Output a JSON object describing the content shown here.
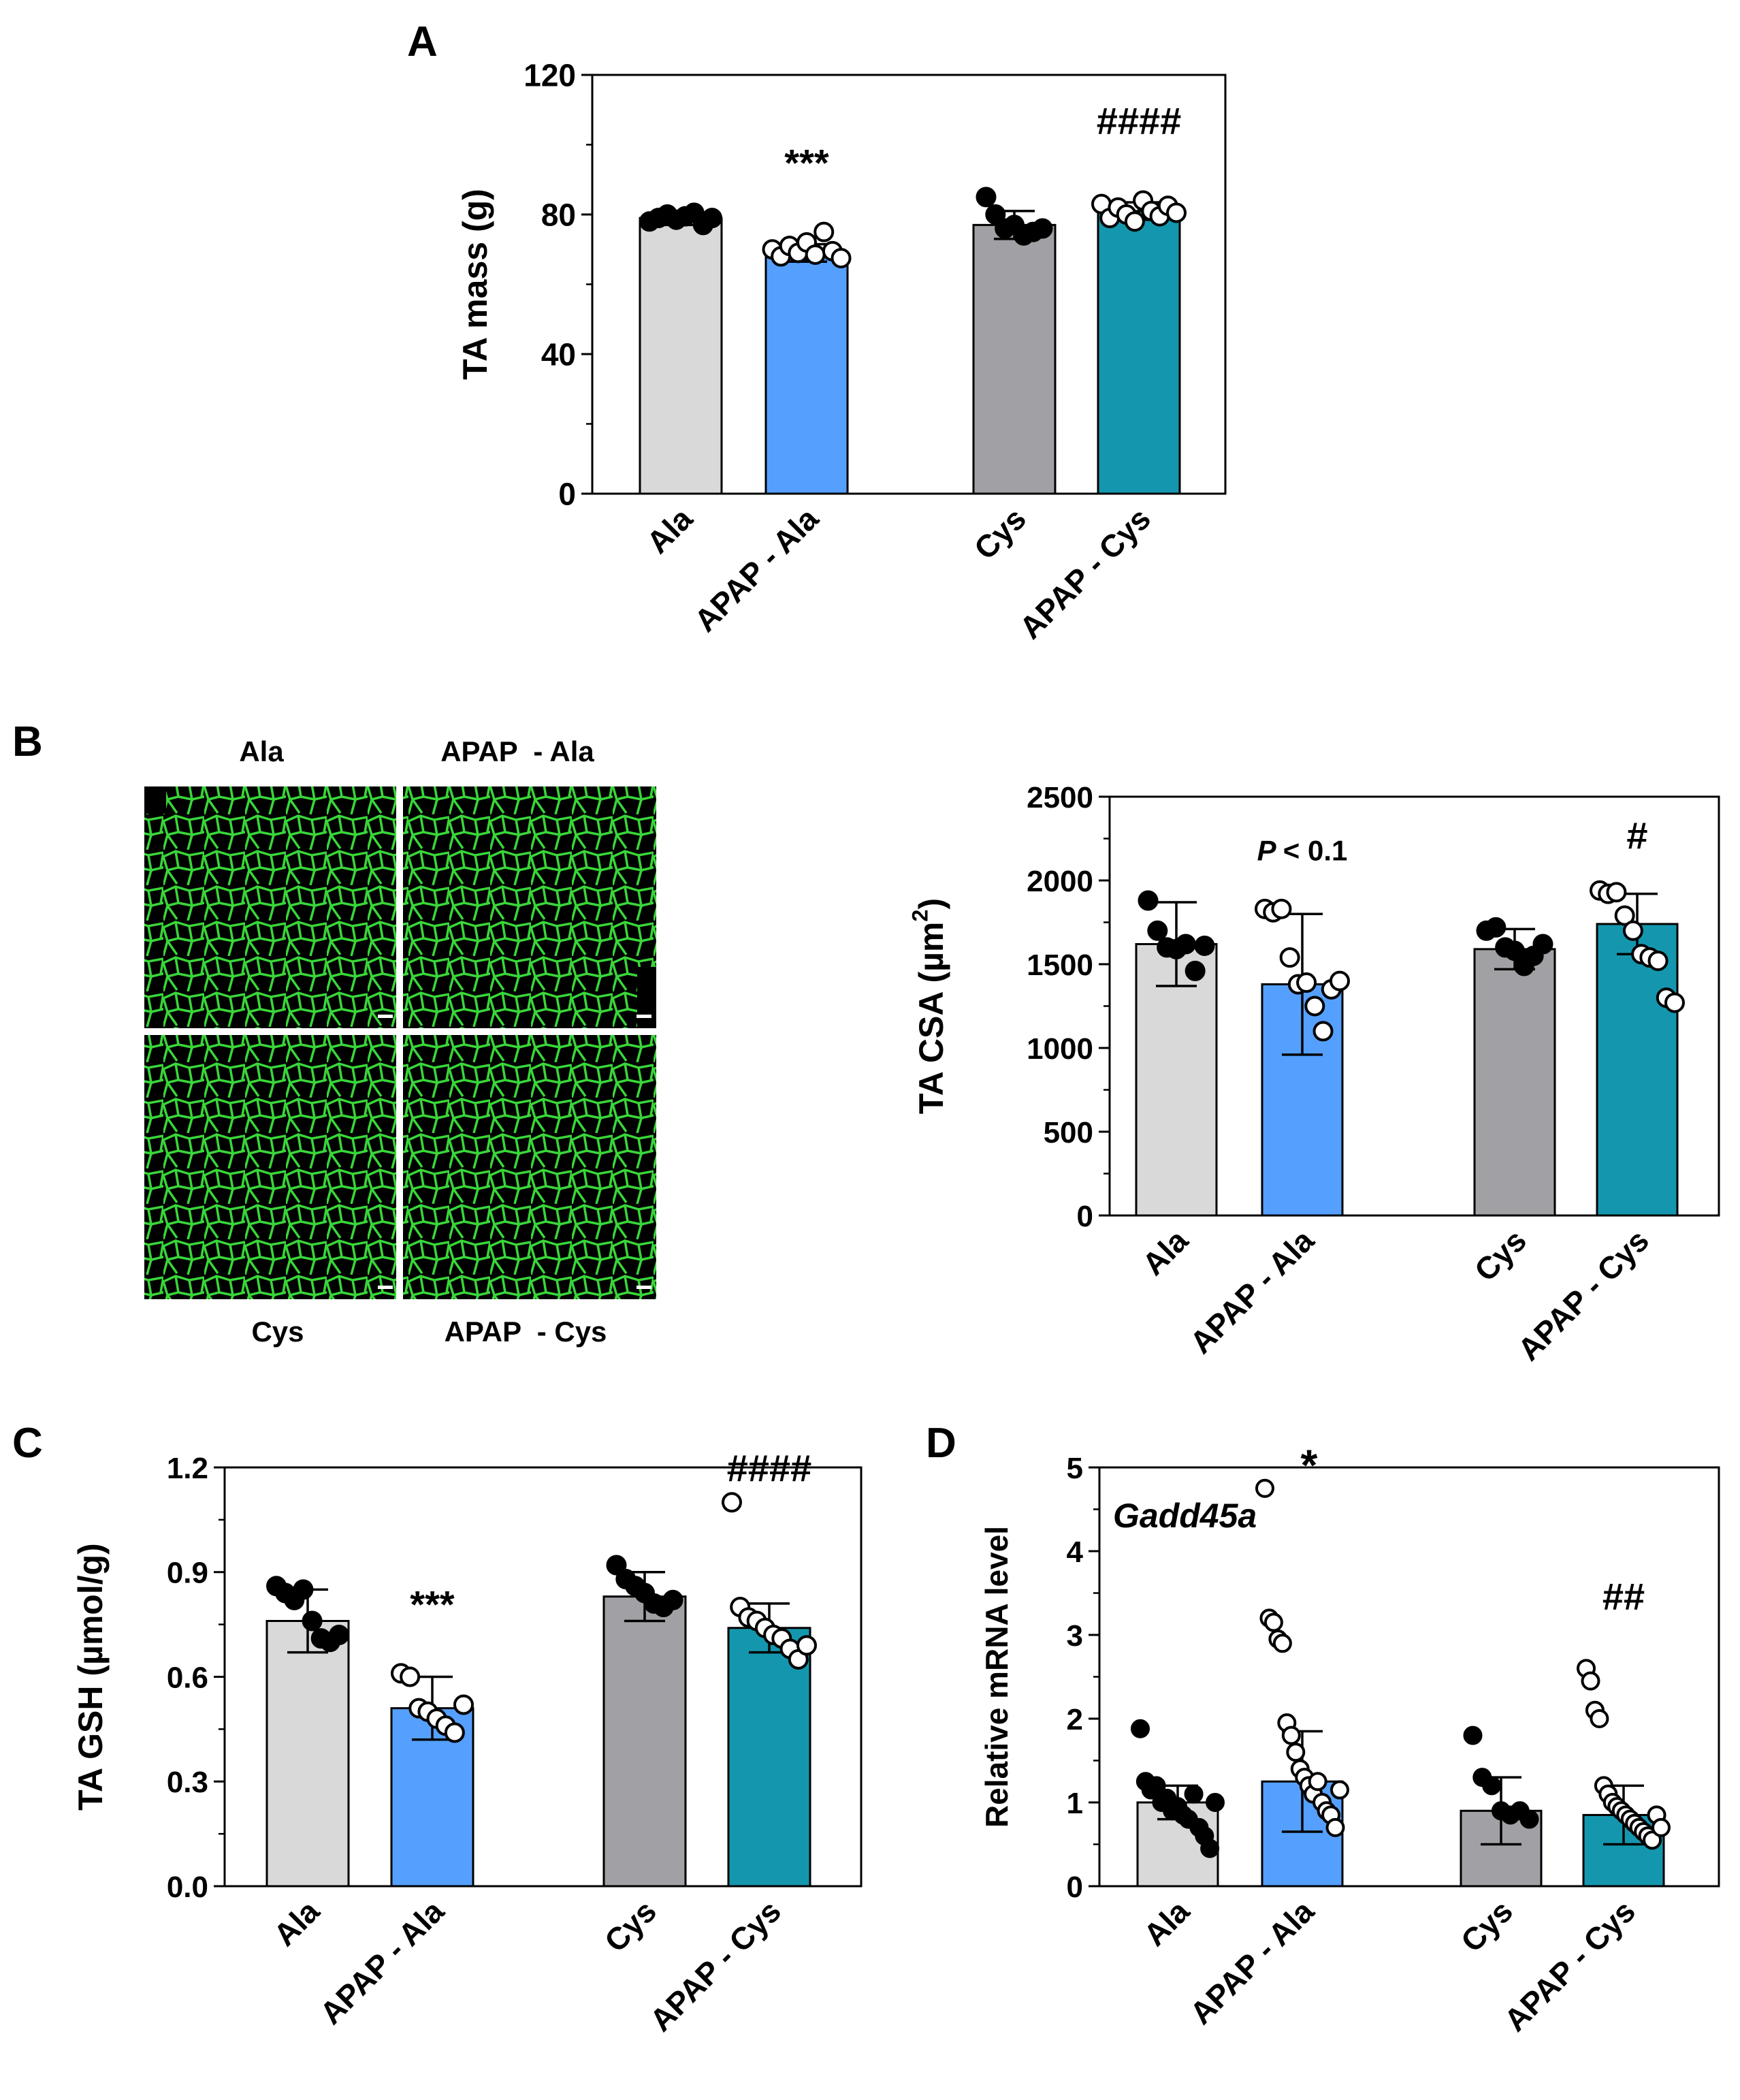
{
  "colors": {
    "ala": "#d9d9d9",
    "apap_ala": "#55a0ff",
    "cys": "#a1a0a5",
    "apap_cys": "#1497ae",
    "stain": "#39d639"
  },
  "panels": {
    "a": "A",
    "b": "B",
    "c": "C",
    "d": "D"
  },
  "micrographs": {
    "labels": [
      "Ala",
      "APAP  - Ala",
      "Cys",
      "APAP  - Cys"
    ]
  },
  "chart_data": [
    {
      "id": "A",
      "type": "bar",
      "ylabel": "TA mass (g)",
      "ylim": [
        0,
        120
      ],
      "yticks": [
        0,
        40,
        80,
        120
      ],
      "categories": [
        "Ala",
        "APAP - Ala",
        "Cys",
        "APAP - Cys"
      ],
      "values": [
        79,
        69,
        77,
        81
      ],
      "sd": [
        2,
        2.5,
        4,
        2.5
      ],
      "points": [
        [
          78,
          79,
          80,
          78.5,
          79.5,
          80.5,
          77,
          79
        ],
        [
          70,
          68,
          71,
          69,
          72,
          68.5,
          75,
          69.5,
          67.5
        ],
        [
          85,
          80,
          76,
          77,
          74,
          75,
          76
        ],
        [
          83,
          79,
          82,
          80,
          78,
          84,
          81,
          79.5,
          82.5,
          80.5
        ]
      ],
      "annotations": [
        "",
        "***",
        "",
        "####"
      ],
      "annotation_values": [
        0,
        91,
        0,
        103
      ],
      "annotation_style": [
        "normal",
        "normal",
        "normal",
        "normal"
      ]
    },
    {
      "id": "B",
      "type": "bar",
      "ylabel": "TA CSA (µm",
      "ylabel_sup": "2",
      "ylabel_end": ")",
      "ylim": [
        0,
        2500
      ],
      "yticks": [
        0,
        500,
        1000,
        1500,
        2000,
        2500
      ],
      "categories": [
        "Ala",
        "APAP - Ala",
        "Cys",
        "APAP - Cys"
      ],
      "values": [
        1620,
        1380,
        1590,
        1740
      ],
      "sd": [
        250,
        420,
        120,
        180
      ],
      "points": [
        [
          1880,
          1700,
          1600,
          1590,
          1620,
          1460,
          1610
        ],
        [
          1830,
          1810,
          1830,
          1540,
          1380,
          1390,
          1250,
          1100,
          1350,
          1400
        ],
        [
          1700,
          1720,
          1600,
          1580,
          1490,
          1550,
          1620
        ],
        [
          1940,
          1920,
          1930,
          1790,
          1700,
          1560,
          1540,
          1520,
          1300,
          1270
        ]
      ],
      "annotations": [
        "",
        "< 0.1",
        "",
        "#"
      ],
      "annotation_prefix": [
        "",
        "P",
        "",
        ""
      ],
      "annotation_values": [
        0,
        2120,
        0,
        2190
      ],
      "annotation_style": [
        "normal",
        "small",
        "normal",
        "normal"
      ]
    },
    {
      "id": "C",
      "type": "bar",
      "ylabel": "TA GSH (µmol/g)",
      "ylim": [
        0,
        1.2
      ],
      "yticks": [
        0.0,
        0.3,
        0.6,
        0.9,
        1.2
      ],
      "tick_labels": [
        "0.0",
        "0.3",
        "0.6",
        "0.9",
        "1.2"
      ],
      "categories": [
        "Ala",
        "APAP - Ala",
        "Cys",
        "APAP - Cys"
      ],
      "values": [
        0.76,
        0.51,
        0.83,
        0.74
      ],
      "sd": [
        0.09,
        0.09,
        0.07,
        0.07
      ],
      "points": [
        [
          0.86,
          0.84,
          0.82,
          0.85,
          0.76,
          0.71,
          0.7,
          0.72
        ],
        [
          0.61,
          0.6,
          0.51,
          0.5,
          0.48,
          0.46,
          0.44,
          0.52
        ],
        [
          0.92,
          0.88,
          0.86,
          0.84,
          0.81,
          0.8,
          0.82
        ],
        [
          1.1,
          0.8,
          0.77,
          0.76,
          0.74,
          0.72,
          0.71,
          0.68,
          0.65,
          0.69
        ]
      ],
      "annotations": [
        "",
        "***",
        "",
        "####"
      ],
      "annotation_values": [
        0,
        0.77,
        0,
        1.16
      ],
      "annotation_style": [
        "normal",
        "normal",
        "normal",
        "normal"
      ]
    },
    {
      "id": "D",
      "type": "bar",
      "ylabel": "Relative mRNA level",
      "gene": "Gadd45a",
      "ylim": [
        0,
        5
      ],
      "yticks": [
        0,
        1,
        2,
        3,
        4,
        5
      ],
      "categories": [
        "Ala",
        "APAP - Ala",
        "Cys",
        "APAP - Cys"
      ],
      "values": [
        1.0,
        1.25,
        0.9,
        0.85
      ],
      "sd": [
        0.2,
        0.6,
        0.4,
        0.35
      ],
      "points": [
        [
          1.88,
          1.25,
          1.15,
          1.2,
          1.0,
          1.05,
          0.9,
          0.95,
          0.85,
          0.8,
          1.1,
          0.7,
          0.6,
          0.45,
          1.0
        ],
        [
          4.75,
          3.2,
          3.15,
          2.95,
          2.9,
          1.95,
          1.8,
          1.6,
          1.4,
          1.3,
          1.2,
          1.1,
          1.25,
          1.0,
          0.9,
          0.85,
          0.7,
          1.15
        ],
        [
          1.8,
          1.3,
          1.2,
          0.9,
          0.85,
          0.9,
          0.8
        ],
        [
          2.6,
          2.45,
          2.1,
          2.0,
          1.2,
          1.1,
          1.0,
          0.95,
          0.9,
          0.85,
          0.8,
          0.75,
          0.7,
          0.65,
          0.6,
          0.55,
          0.85,
          0.7
        ]
      ],
      "annotations": [
        "",
        "*",
        "",
        "##"
      ],
      "annotation_values": [
        0,
        4.85,
        0,
        3.3
      ],
      "annotation_style": [
        "normal",
        "star",
        "normal",
        "normal"
      ]
    }
  ]
}
